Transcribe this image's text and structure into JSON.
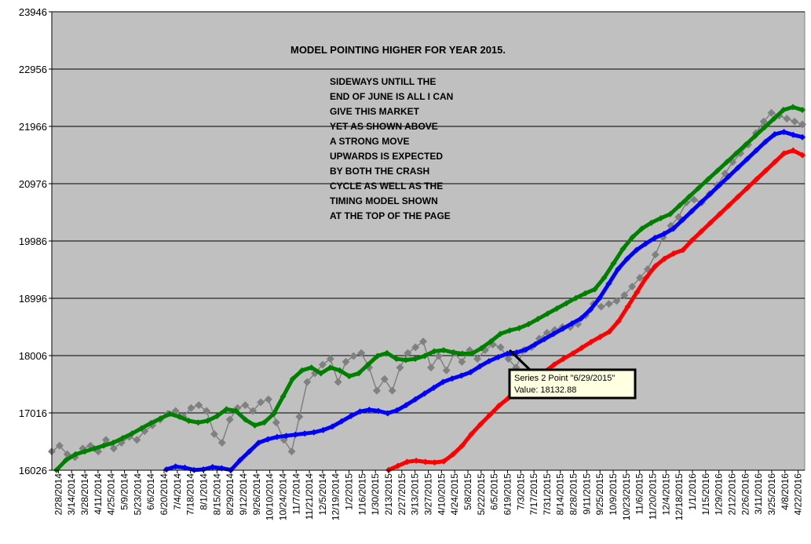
{
  "chart_data": {
    "type": "line",
    "title": "MODEL POINTING HIGHER FOR YEAR 2015.",
    "annotation_lines": [
      "SIDEWAYS UNTILL THE",
      "END OF JUNE IS ALL I CAN",
      "GIVE THIS MARKET",
      "YET AS SHOWN ABOVE",
      "A STRONG MOVE",
      "UPWARDS IS EXPECTED",
      "BY BOTH THE CRASH",
      "CYCLE AS WELL AS THE",
      "TIMING MODEL SHOWN",
      "AT THE TOP OF THE PAGE"
    ],
    "y_ticks": [
      "23946",
      "22956",
      "21966",
      "20976",
      "19986",
      "18996",
      "18006",
      "17016",
      "16026"
    ],
    "ylim": [
      16026,
      23946
    ],
    "grid": true,
    "x_ticks": [
      "2/28/2014",
      "3/14/2014",
      "3/28/2014",
      "4/11/2014",
      "4/25/2014",
      "5/9/2014",
      "5/23/2014",
      "6/6/2014",
      "6/20/2014",
      "7/4/2014",
      "7/18/2014",
      "8/1/2014",
      "8/15/2014",
      "8/29/2014",
      "9/12/2014",
      "9/26/2014",
      "10/10/2014",
      "10/24/2014",
      "11/7/2014",
      "11/21/2014",
      "12/5/2014",
      "12/19/2014",
      "1/2/2015",
      "1/16/2015",
      "1/30/2015",
      "2/13/2015",
      "2/27/2015",
      "3/13/2015",
      "3/27/2015",
      "4/10/2015",
      "4/24/2015",
      "5/8/2015",
      "5/22/2015",
      "6/5/2015",
      "6/19/2015",
      "7/3/2015",
      "7/17/2015",
      "7/31/2015",
      "8/14/2015",
      "8/28/2015",
      "9/11/2015",
      "9/25/2015",
      "10/9/2015",
      "10/23/2015",
      "11/6/2015",
      "11/20/2015",
      "12/4/2015",
      "12/18/2015",
      "1/1/2016",
      "1/15/2016",
      "1/29/2016",
      "2/12/2016",
      "2/26/2016",
      "3/11/2016",
      "3/25/2016",
      "4/8/2016",
      "4/22/2016"
    ],
    "series": [
      {
        "color": "#808080",
        "marker": "diamond",
        "values": [
          16350,
          16450,
          16300,
          16250,
          16400,
          16450,
          16350,
          16550,
          16400,
          16500,
          16600,
          16550,
          16700,
          16800,
          16900,
          17000,
          17050,
          16950,
          17100,
          17150,
          17050,
          16650,
          16500,
          16900,
          17100,
          17150,
          17050,
          17200,
          17250,
          16850,
          16550,
          16350,
          16950,
          17550,
          17700,
          17850,
          17950,
          17550,
          17900,
          18000,
          18050,
          17800,
          17400,
          17600,
          17400,
          17800,
          18050,
          18150,
          18250,
          17800,
          18000,
          17750,
          18050,
          17900,
          18100,
          17950,
          18100,
          18200,
          18150,
          17950,
          17800,
          18100,
          18150,
          18300,
          18400,
          18450,
          18500,
          18500,
          18550,
          18700,
          18900,
          18850,
          18900,
          18950,
          19050,
          19200,
          19350,
          19500,
          19750,
          20050,
          20250,
          20400,
          20650,
          20700,
          20650,
          20800,
          20950,
          21150,
          21350,
          21500,
          21650,
          21850,
          22050,
          22200,
          22150,
          22100,
          22050,
          22000
        ]
      },
      {
        "color": "#008000",
        "marker": "diamond",
        "values": [
          16030,
          16200,
          16300,
          16350,
          16400,
          16450,
          16500,
          16580,
          16660,
          16750,
          16840,
          16920,
          17000,
          16950,
          16880,
          16850,
          16880,
          16960,
          17080,
          17050,
          16900,
          16800,
          16850,
          17000,
          17300,
          17600,
          17750,
          17800,
          17700,
          17800,
          17750,
          17650,
          17700,
          17850,
          18000,
          18050,
          17950,
          17930,
          17950,
          18000,
          18080,
          18100,
          18060,
          18040,
          18040,
          18132.88,
          18250,
          18380,
          18440,
          18480,
          18550,
          18640,
          18730,
          18820,
          18910,
          19000,
          19080,
          19150,
          19350,
          19600,
          19850,
          20050,
          20200,
          20300,
          20380,
          20450,
          20600,
          20750,
          20900,
          21050,
          21200,
          21350,
          21500,
          21650,
          21800,
          21950,
          22100,
          22250,
          22300,
          22250
        ]
      },
      {
        "color": "#0000ff",
        "marker": "diamond",
        "values": [
          16040,
          16090,
          16070,
          16030,
          16040,
          16080,
          16060,
          16030,
          16200,
          16350,
          16500,
          16560,
          16600,
          16620,
          16640,
          16660,
          16680,
          16720,
          16780,
          16870,
          16960,
          17040,
          17070,
          17050,
          17010,
          17060,
          17150,
          17250,
          17350,
          17450,
          17550,
          17610,
          17660,
          17720,
          17820,
          17910,
          17980,
          18040,
          18060,
          18110,
          18200,
          18290,
          18380,
          18470,
          18560,
          18650,
          18800,
          19000,
          19250,
          19500,
          19680,
          19830,
          19940,
          20040,
          20110,
          20200,
          20350,
          20500,
          20650,
          20800,
          20950,
          21100,
          21250,
          21400,
          21550,
          21700,
          21830,
          21870,
          21820,
          21780
        ]
      },
      {
        "color": "#ff0000",
        "marker": "diamond",
        "values": [
          16030,
          16100,
          16170,
          16190,
          16170,
          16160,
          16180,
          16300,
          16450,
          16650,
          16820,
          16980,
          17140,
          17270,
          17390,
          17500,
          17620,
          17730,
          17850,
          17950,
          18040,
          18140,
          18240,
          18330,
          18420,
          18600,
          18850,
          19100,
          19350,
          19550,
          19680,
          19770,
          19830,
          20000,
          20150,
          20300,
          20450,
          20600,
          20750,
          20900,
          21050,
          21200,
          21350,
          21500,
          21550,
          21470
        ]
      }
    ],
    "tooltip": {
      "line1": "Series 2 Point \"6/29/2015\"",
      "line2": "Value: 18132.88"
    }
  }
}
